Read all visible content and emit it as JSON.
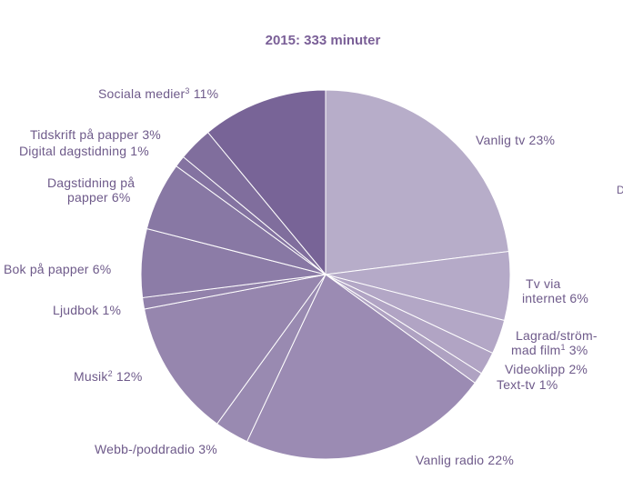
{
  "chart_data": {
    "type": "pie",
    "title": "2015: 333 minuter",
    "slices": [
      {
        "label": "Vanlig tv",
        "value": 23,
        "value_text": "23%",
        "color": "#b7adc9"
      },
      {
        "label": "Tv via internet",
        "value": 6,
        "value_text": "6%",
        "color": "#b5aac8"
      },
      {
        "label": "Lagrad/strömmad film",
        "sup": "1",
        "value": 3,
        "value_text": "3%",
        "color": "#b3a7c6"
      },
      {
        "label": "Videoklipp",
        "value": 2,
        "value_text": "2%",
        "color": "#b1a4c4"
      },
      {
        "label": "Text-tv",
        "value": 1,
        "value_text": "1%",
        "color": "#afa2c2"
      },
      {
        "label": "Vanlig radio",
        "value": 22,
        "value_text": "22%",
        "color": "#9b8bb3"
      },
      {
        "label": "Webb-/poddradio",
        "value": 3,
        "value_text": "3%",
        "color": "#998ab1"
      },
      {
        "label": "Musik",
        "sup": "2",
        "value": 12,
        "value_text": "12%",
        "color": "#9686ae"
      },
      {
        "label": "Ljudbok",
        "value": 1,
        "value_text": "1%",
        "color": "#9282ab"
      },
      {
        "label": "Bok på papper",
        "value": 6,
        "value_text": "6%",
        "color": "#8c7ca7"
      },
      {
        "label": "Dagstidning på papper",
        "value": 6,
        "value_text": "6%",
        "color": "#8878a4"
      },
      {
        "label": "Digital dagstidning",
        "value": 1,
        "value_text": "1%",
        "color": "#8473a1"
      },
      {
        "label": "Tidskrift på papper",
        "value": 3,
        "value_text": "3%",
        "color": "#806e9d"
      },
      {
        "label": "Sociala medier",
        "sup": "3",
        "value": 11,
        "value_text": "11%",
        "color": "#786497"
      }
    ],
    "edge_text": "D"
  }
}
